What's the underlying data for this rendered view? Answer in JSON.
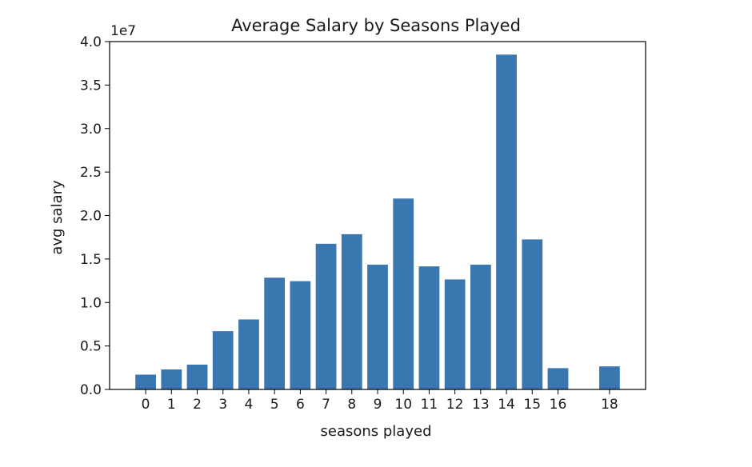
{
  "chart_data": {
    "type": "bar",
    "title": "Average Salary by Seasons Played",
    "xlabel": "seasons played",
    "ylabel": "avg salary",
    "y_offset_label": "1e7",
    "x": [
      0,
      1,
      2,
      3,
      4,
      5,
      6,
      7,
      8,
      9,
      10,
      11,
      12,
      13,
      14,
      15,
      16,
      18
    ],
    "x_tick_labels": [
      "0",
      "1",
      "2",
      "3",
      "4",
      "5",
      "6",
      "7",
      "8",
      "9",
      "10",
      "11",
      "12",
      "13",
      "14",
      "15",
      "16",
      "18"
    ],
    "values": [
      1700000,
      2300000,
      2850000,
      6700000,
      8050000,
      12850000,
      12450000,
      16750000,
      17850000,
      14350000,
      21950000,
      14150000,
      12650000,
      14350000,
      38500000,
      17250000,
      2450000,
      2650000
    ],
    "xlim": [
      -1.4,
      19.4
    ],
    "ylim": [
      0,
      40000000
    ],
    "y_ticks": [
      0,
      5000000,
      10000000,
      15000000,
      20000000,
      25000000,
      30000000,
      35000000,
      40000000
    ],
    "y_tick_labels": [
      "0.0",
      "0.5",
      "1.0",
      "1.5",
      "2.0",
      "2.5",
      "3.0",
      "3.5",
      "4.0"
    ],
    "bar_color": "#3a76af",
    "grid": false,
    "legend": "none"
  }
}
